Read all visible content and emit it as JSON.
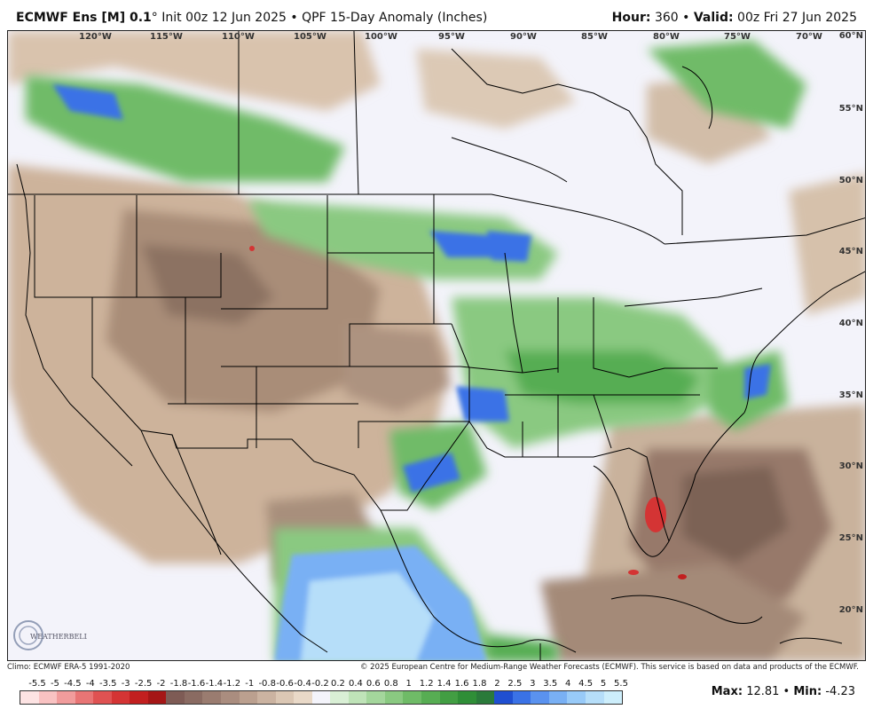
{
  "header": {
    "model": "ECMWF Ens [M] 0.1",
    "degree": "°",
    "init": "Init 00z 12 Jun 2025",
    "separator": "•",
    "product": "QPF 15-Day Anomaly (Inches)",
    "hour_label": "Hour:",
    "hour_value": "360",
    "valid_label": "Valid:",
    "valid_value": "00z Fri 27 Jun 2025"
  },
  "map": {
    "longitude_labels": [
      "120°W",
      "115°W",
      "110°W",
      "105°W",
      "100°W",
      "95°W",
      "90°W",
      "85°W",
      "80°W",
      "75°W",
      "70°W"
    ],
    "latitude_labels": [
      "60°N",
      "55°N",
      "50°N",
      "45°N",
      "40°N",
      "35°N",
      "30°N",
      "25°N",
      "20°N"
    ]
  },
  "credits": {
    "climo": "Climo: ECMWF ERA-5 1991-2020",
    "copyright": "© 2025 European Centre for Medium-Range Weather Forecasts (ECMWF). This service is based on data and products of the ECMWF."
  },
  "colorbar": {
    "labels": [
      "-5.5",
      "-5",
      "-4.5",
      "-4",
      "-3.5",
      "-3",
      "-2.5",
      "-2",
      "-1.8",
      "-1.6",
      "-1.4",
      "-1.2",
      "-1",
      "-0.8",
      "-0.6",
      "-0.4",
      "-0.2",
      "0.2",
      "0.4",
      "0.6",
      "0.8",
      "1",
      "1.2",
      "1.4",
      "1.6",
      "1.8",
      "2",
      "2.5",
      "3",
      "3.5",
      "4",
      "4.5",
      "5",
      "5.5"
    ],
    "colors": [
      "#fde3e3",
      "#f9c2c2",
      "#f19c9c",
      "#e87575",
      "#df5252",
      "#d43434",
      "#c21f1f",
      "#a51616",
      "#7e5b55",
      "#8a6b62",
      "#9a7c70",
      "#aa8d7f",
      "#bba08f",
      "#cbb3a1",
      "#dbc7b4",
      "#e9d9c8",
      "#f4f4fb",
      "#d9efd5",
      "#bfe3b8",
      "#a4d69c",
      "#8ac981",
      "#6fbb67",
      "#57ad53",
      "#429e43",
      "#2f8e37",
      "#2a7a3a",
      "#1f4fd1",
      "#3a72e6",
      "#5a92ef",
      "#79b0f4",
      "#98caf8",
      "#b6def9",
      "#cdeefb"
    ]
  },
  "stats": {
    "max_label": "Max:",
    "max_value": "12.81",
    "separator": "•",
    "min_label": "Min:",
    "min_value": "-4.23"
  },
  "logo": {
    "text": "WEATHERBELL"
  }
}
